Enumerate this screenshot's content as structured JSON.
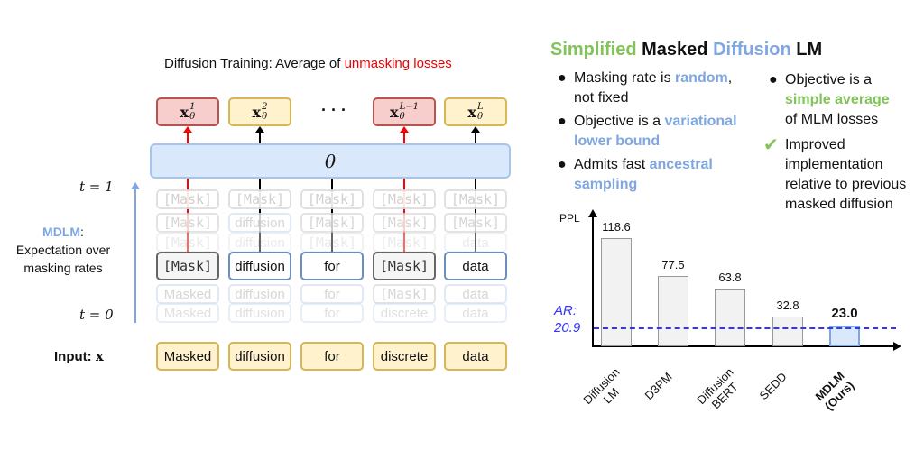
{
  "left": {
    "title_prefix": "Diffusion Training: Average of ",
    "title_highlight": "unmasking losses",
    "outputs": [
      {
        "base": "x",
        "sup": "1",
        "sub": "θ",
        "style": "red"
      },
      {
        "base": "x",
        "sup": "2",
        "sub": "θ",
        "style": "yellow"
      },
      {
        "base": "x",
        "sup": "L−1",
        "sub": "θ",
        "style": "red"
      },
      {
        "base": "x",
        "sup": "L",
        "sub": "θ",
        "style": "yellow"
      }
    ],
    "ellipsis": "· · ·",
    "model": "θ",
    "t1": "t = 1",
    "t0": "t = 0",
    "mdlm_label": "MDLM",
    "mdlm_colon": ":",
    "mdlm_desc": "Expectation over masking rates",
    "faded_rows": [
      [
        "[Mask]",
        "[Mask]",
        "[Mask]",
        "[Mask]",
        "[Mask]"
      ],
      [
        "[Mask]",
        "diffusion",
        "[Mask]",
        "[Mask]",
        "[Mask]"
      ],
      [
        "[Mask]",
        "diffusion",
        "[Mask]",
        "[Mask]",
        "data"
      ],
      [
        "Masked",
        "diffusion",
        "for",
        "[Mask]",
        "data"
      ],
      [
        "Masked",
        "diffusion",
        "for",
        "discrete",
        "data"
      ]
    ],
    "current_row": [
      "[Mask]",
      "diffusion",
      "for",
      "[Mask]",
      "data"
    ],
    "input_label": "Input: ",
    "input_var": "x",
    "input_row": [
      "Masked",
      "diffusion",
      "for",
      "discrete",
      "data"
    ]
  },
  "right": {
    "title": [
      {
        "t": "Simplified",
        "c": "green"
      },
      {
        "t": " Masked ",
        "c": "black"
      },
      {
        "t": "Diffusion",
        "c": "blue"
      },
      {
        "t": " LM",
        "c": "black"
      }
    ],
    "b1a": "Masking rate is ",
    "b1b": "random",
    "b1c": ",",
    "b1d": "not fixed",
    "b2a": "Objective is a ",
    "b2b": "variational",
    "b2c": "lower bound",
    "b3a": "Admits fast ",
    "b3b": "ancestral",
    "b3c": "sampling",
    "b4a": "Objective is a",
    "b4b": "simple average",
    "b4c": "of MLM losses",
    "check": "✔",
    "b5": "Improved implementation relative to previous masked diffusion"
  },
  "chart_data": {
    "type": "bar",
    "ylabel": "PPL",
    "categories": [
      "Diffusion LM",
      "D3PM",
      "Diffusion BERT",
      "SEDD",
      "MDLM (Ours)"
    ],
    "values": [
      118.6,
      77.5,
      63.8,
      32.8,
      23.0
    ],
    "value_labels": [
      "118.6",
      "77.5",
      "63.8",
      "32.8",
      "23.0"
    ],
    "ref_line": {
      "label": "AR:",
      "value_label": "20.9",
      "value": 20.9,
      "color": "#3333ff"
    },
    "highlight_color": "#dae8fc"
  }
}
